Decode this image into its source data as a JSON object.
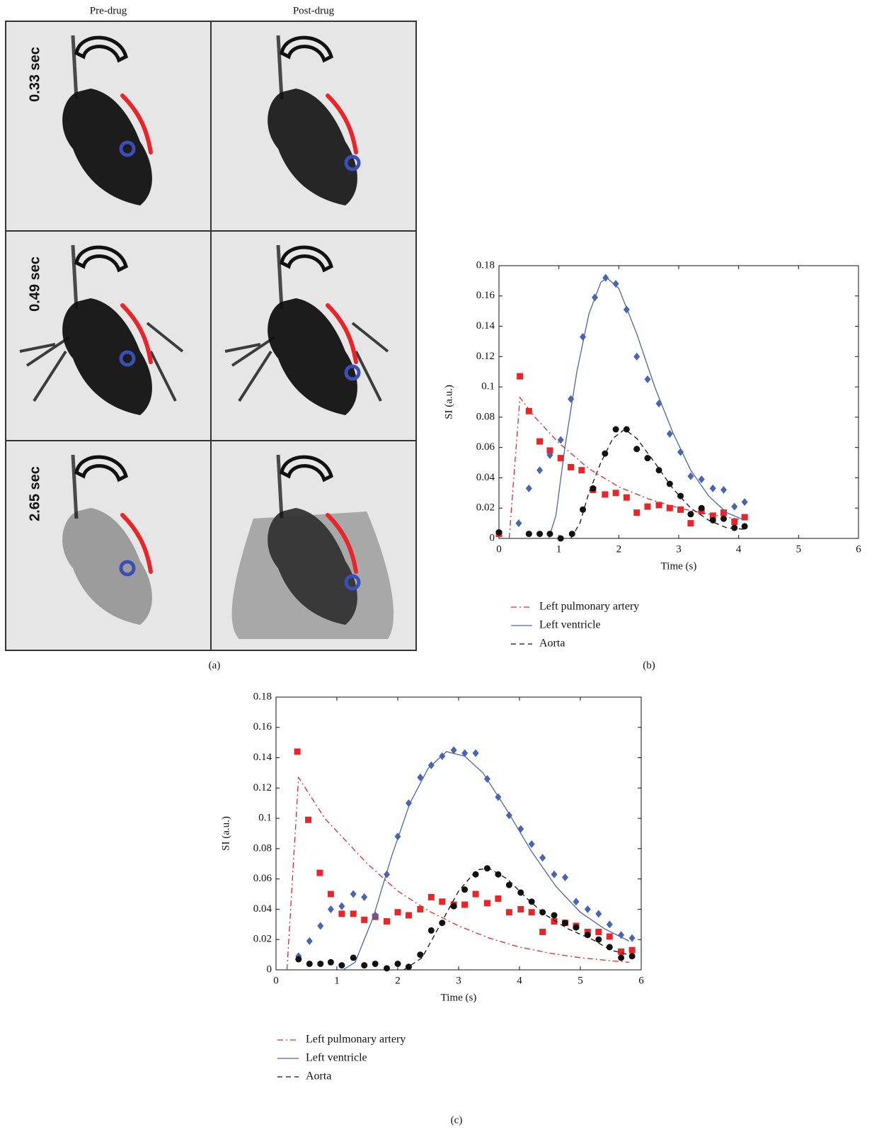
{
  "panel_a": {
    "columns": [
      "Pre-drug",
      "Post-drug"
    ],
    "rows": [
      "0.33 sec",
      "0.49 sec",
      "2.65 sec"
    ],
    "panel_label": "(a)"
  },
  "chart_data": [
    {
      "type": "scatter",
      "panel_label": "(b)",
      "xlabel": "Time (s)",
      "ylabel": "SI (a.u.)",
      "xlim": [
        0,
        6
      ],
      "ylim": [
        0,
        0.18
      ],
      "xticks": [
        0,
        1,
        2,
        3,
        4,
        5,
        6
      ],
      "yticks": [
        0,
        0.02,
        0.04,
        0.06,
        0.08,
        0.1,
        0.12,
        0.14,
        0.16,
        0.18
      ],
      "series": [
        {
          "name": "Left pulmonary artery",
          "color": "#e8262a",
          "marker": "square",
          "dash": "dashdot",
          "points_x": [
            0.0,
            0.35,
            0.5,
            0.68,
            0.85,
            1.03,
            1.2,
            1.38,
            1.57,
            1.77,
            1.95,
            2.13,
            2.3,
            2.48,
            2.67,
            2.85,
            3.03,
            3.2,
            3.38,
            3.57,
            3.75,
            3.93,
            4.1
          ],
          "points_y": [
            0.003,
            0.107,
            0.084,
            0.064,
            0.058,
            0.053,
            0.047,
            0.045,
            0.032,
            0.029,
            0.03,
            0.027,
            0.017,
            0.021,
            0.022,
            0.02,
            0.019,
            0.01,
            0.018,
            0.015,
            0.017,
            0.011,
            0.014
          ],
          "fit_x": [
            0.17,
            0.35,
            0.6,
            1,
            1.5,
            2,
            2.5,
            3,
            3.5,
            4.1
          ],
          "fit_y": [
            0,
            0.093,
            0.08,
            0.063,
            0.046,
            0.034,
            0.026,
            0.02,
            0.016,
            0.012
          ]
        },
        {
          "name": "Left ventricle",
          "color": "#4a64b0",
          "marker": "diamond",
          "dash": "solid",
          "points_x": [
            0.0,
            0.33,
            0.5,
            0.68,
            0.85,
            1.03,
            1.2,
            1.4,
            1.6,
            1.78,
            1.95,
            2.13,
            2.3,
            2.48,
            2.67,
            2.85,
            3.03,
            3.2,
            3.38,
            3.57,
            3.75,
            3.93,
            4.1
          ],
          "points_y": [
            0.004,
            0.01,
            0.033,
            0.045,
            0.055,
            0.065,
            0.092,
            0.133,
            0.159,
            0.172,
            0.168,
            0.151,
            0.12,
            0.105,
            0.089,
            0.069,
            0.057,
            0.041,
            0.039,
            0.033,
            0.032,
            0.021,
            0.024
          ],
          "fit_x": [
            0.83,
            0.95,
            1.1,
            1.3,
            1.5,
            1.7,
            1.8,
            2.0,
            2.3,
            2.6,
            2.9,
            3.2,
            3.5,
            3.8,
            4.1
          ],
          "fit_y": [
            0,
            0.015,
            0.06,
            0.11,
            0.148,
            0.169,
            0.172,
            0.165,
            0.135,
            0.1,
            0.07,
            0.045,
            0.028,
            0.017,
            0.012
          ]
        },
        {
          "name": "Aorta",
          "color": "#111111",
          "marker": "circle",
          "dash": "dashed",
          "points_x": [
            0.0,
            0.5,
            0.68,
            0.85,
            1.03,
            1.22,
            1.4,
            1.57,
            1.77,
            1.95,
            2.13,
            2.3,
            2.48,
            2.67,
            2.85,
            3.03,
            3.2,
            3.38,
            3.57,
            3.75,
            3.93,
            4.1
          ],
          "points_y": [
            0.004,
            0.003,
            0.003,
            0.003,
            0.0,
            0.003,
            0.019,
            0.033,
            0.056,
            0.072,
            0.072,
            0.059,
            0.053,
            0.045,
            0.036,
            0.028,
            0.016,
            0.02,
            0.012,
            0.013,
            0.007,
            0.008
          ],
          "fit_x": [
            1.2,
            1.35,
            1.5,
            1.7,
            1.9,
            2.1,
            2.3,
            2.6,
            2.9,
            3.2,
            3.5,
            3.8,
            4.1
          ],
          "fit_y": [
            0,
            0.01,
            0.03,
            0.05,
            0.066,
            0.072,
            0.066,
            0.05,
            0.033,
            0.02,
            0.012,
            0.007,
            0.006
          ]
        }
      ]
    },
    {
      "type": "scatter",
      "panel_label": "(c)",
      "xlabel": "Time (s)",
      "ylabel": "SI (a.u.)",
      "xlim": [
        0,
        6
      ],
      "ylim": [
        0,
        0.18
      ],
      "xticks": [
        0,
        1,
        2,
        3,
        4,
        5,
        6
      ],
      "yticks": [
        0,
        0.02,
        0.04,
        0.06,
        0.08,
        0.1,
        0.12,
        0.14,
        0.16,
        0.18
      ],
      "series": [
        {
          "name": "Left pulmonary artery",
          "color": "#e8262a",
          "marker": "square",
          "dash": "dashdot",
          "points_x": [
            0.35,
            0.53,
            0.72,
            0.9,
            1.08,
            1.27,
            1.45,
            1.63,
            1.82,
            2.0,
            2.18,
            2.37,
            2.55,
            2.73,
            2.92,
            3.1,
            3.28,
            3.47,
            3.65,
            3.83,
            4.02,
            4.2,
            4.38,
            4.57,
            4.75,
            4.93,
            5.12,
            5.3,
            5.48,
            5.67,
            5.85
          ],
          "points_y": [
            0.144,
            0.099,
            0.064,
            0.05,
            0.037,
            0.037,
            0.033,
            0.035,
            0.032,
            0.038,
            0.036,
            0.04,
            0.048,
            0.045,
            0.043,
            0.043,
            0.05,
            0.044,
            0.047,
            0.038,
            0.04,
            0.038,
            0.025,
            0.032,
            0.031,
            0.029,
            0.025,
            0.025,
            0.022,
            0.012,
            0.013
          ],
          "fit_x": [
            0.18,
            0.37,
            0.8,
            1.5,
            2,
            2.5,
            3,
            3.5,
            4,
            4.5,
            5,
            5.5,
            5.8
          ],
          "fit_y": [
            0,
            0.127,
            0.1,
            0.07,
            0.052,
            0.039,
            0.029,
            0.021,
            0.015,
            0.011,
            0.008,
            0.006,
            0.005
          ]
        },
        {
          "name": "Left ventricle",
          "color": "#4a64b0",
          "marker": "diamond",
          "dash": "solid",
          "points_x": [
            0.37,
            0.55,
            0.73,
            0.9,
            1.08,
            1.27,
            1.45,
            1.63,
            1.82,
            2.0,
            2.18,
            2.37,
            2.55,
            2.73,
            2.92,
            3.1,
            3.28,
            3.47,
            3.65,
            3.83,
            4.02,
            4.2,
            4.38,
            4.57,
            4.75,
            4.93,
            5.12,
            5.3,
            5.48,
            5.67,
            5.85
          ],
          "points_y": [
            0.009,
            0.019,
            0.029,
            0.04,
            0.042,
            0.05,
            0.048,
            0.036,
            0.063,
            0.088,
            0.11,
            0.127,
            0.135,
            0.141,
            0.145,
            0.143,
            0.143,
            0.126,
            0.114,
            0.102,
            0.093,
            0.083,
            0.074,
            0.063,
            0.061,
            0.045,
            0.04,
            0.037,
            0.03,
            0.023,
            0.021
          ],
          "fit_x": [
            1.1,
            1.3,
            1.6,
            1.9,
            2.2,
            2.5,
            2.8,
            3.1,
            3.4,
            3.8,
            4.2,
            4.6,
            5.0,
            5.4,
            5.8
          ],
          "fit_y": [
            0,
            0.005,
            0.035,
            0.075,
            0.11,
            0.133,
            0.144,
            0.141,
            0.13,
            0.105,
            0.078,
            0.055,
            0.038,
            0.027,
            0.019
          ]
        },
        {
          "name": "Aorta",
          "color": "#111111",
          "marker": "circle",
          "dash": "dashed",
          "points_x": [
            0.37,
            0.55,
            0.73,
            0.9,
            1.08,
            1.27,
            1.45,
            1.63,
            1.82,
            2.0,
            2.18,
            2.37,
            2.55,
            2.73,
            2.92,
            3.1,
            3.28,
            3.47,
            3.65,
            3.83,
            4.02,
            4.2,
            4.38,
            4.57,
            4.75,
            4.93,
            5.12,
            5.3,
            5.48,
            5.67,
            5.85
          ],
          "points_y": [
            0.007,
            0.004,
            0.004,
            0.005,
            0.003,
            0.008,
            0.003,
            0.004,
            0.001,
            0.004,
            0.002,
            0.01,
            0.026,
            0.031,
            0.042,
            0.053,
            0.063,
            0.067,
            0.063,
            0.056,
            0.051,
            0.045,
            0.038,
            0.036,
            0.031,
            0.028,
            0.023,
            0.02,
            0.015,
            0.008,
            0.009
          ],
          "fit_x": [
            2.1,
            2.4,
            2.7,
            3.0,
            3.3,
            3.5,
            3.8,
            4.1,
            4.4,
            4.8,
            5.2,
            5.5,
            5.8
          ],
          "fit_y": [
            0,
            0.008,
            0.03,
            0.052,
            0.066,
            0.067,
            0.06,
            0.048,
            0.037,
            0.027,
            0.02,
            0.013,
            0.01
          ]
        }
      ]
    }
  ]
}
